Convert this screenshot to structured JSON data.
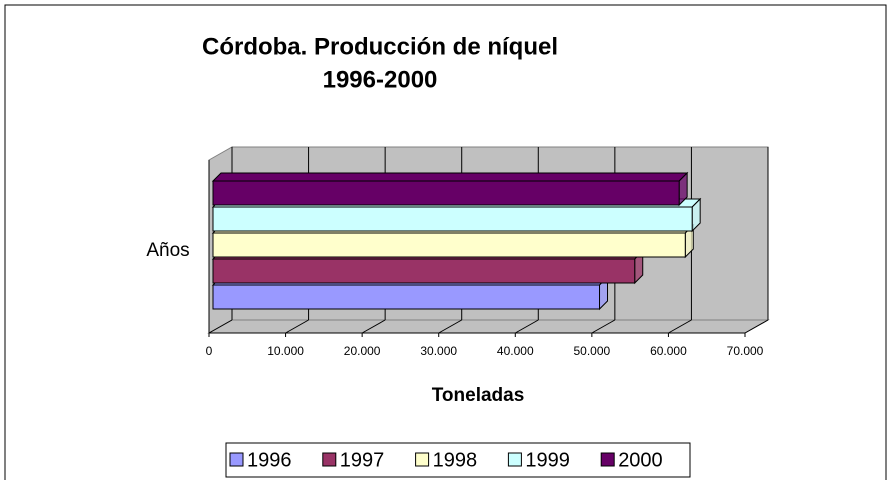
{
  "chart_data": {
    "type": "bar3d",
    "title": "Córdoba. Producción de níquel",
    "subtitle": "1996-2000",
    "y_label": "Años",
    "x_label": "Toneladas",
    "xlim": [
      0,
      70000
    ],
    "xticks": [
      0,
      {
        "value": 10000,
        "label": "10.000"
      },
      {
        "value": 20000,
        "label": "20.000"
      },
      {
        "value": 30000,
        "label": "30.000"
      },
      {
        "value": 40000,
        "label": "40.000"
      },
      {
        "value": 50000,
        "label": "50.000"
      },
      {
        "value": 60000,
        "label": "60.000"
      },
      {
        "value": 70000,
        "label": "70.000"
      }
    ],
    "grid": true,
    "legend": "bottom",
    "series": [
      {
        "name": "1996",
        "color": "#9999ff",
        "values": [
          51000
        ]
      },
      {
        "name": "1997",
        "color": "#993366",
        "values": [
          55600
        ]
      },
      {
        "name": "1998",
        "color": "#ffffcc",
        "values": [
          62200
        ]
      },
      {
        "name": "1999",
        "color": "#ccffff",
        "values": [
          63100
        ]
      },
      {
        "name": "2000",
        "color": "#660066",
        "values": [
          61400
        ]
      }
    ]
  }
}
